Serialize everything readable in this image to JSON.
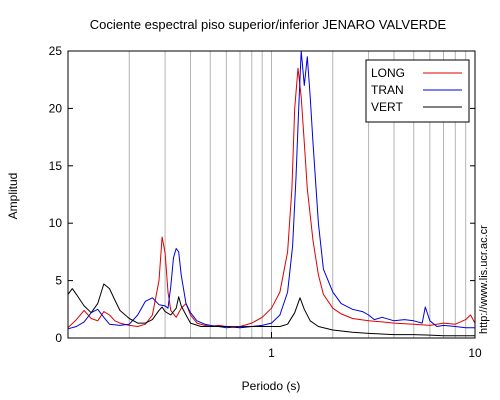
{
  "chart_data": {
    "type": "line",
    "title": "Cociente espectral piso superior/inferior  JENARO VALVERDE",
    "xlabel": "Periodo (s)",
    "ylabel": "Amplitud",
    "xscale": "log",
    "xlim": [
      0.1,
      10
    ],
    "ylim": [
      0,
      25
    ],
    "xticks": [
      {
        "value": 1,
        "label": "1"
      },
      {
        "value": 10,
        "label": "10"
      }
    ],
    "yticks": [
      0,
      5,
      10,
      15,
      20,
      25
    ],
    "grid": "vertical log grid (x only)",
    "legend_position": "top-right",
    "watermark": "http://www.lis.ucr.ac.cr",
    "series": [
      {
        "name": "LONG",
        "color": "#e00000",
        "points": [
          [
            0.1,
            0.9
          ],
          [
            0.11,
            1.6
          ],
          [
            0.12,
            2.4
          ],
          [
            0.13,
            1.7
          ],
          [
            0.14,
            1.5
          ],
          [
            0.15,
            2.3
          ],
          [
            0.16,
            2.0
          ],
          [
            0.17,
            1.5
          ],
          [
            0.18,
            1.3
          ],
          [
            0.2,
            1.1
          ],
          [
            0.22,
            1.0
          ],
          [
            0.24,
            1.2
          ],
          [
            0.26,
            2.0
          ],
          [
            0.28,
            5.0
          ],
          [
            0.29,
            8.8
          ],
          [
            0.3,
            7.4
          ],
          [
            0.31,
            4.0
          ],
          [
            0.32,
            2.4
          ],
          [
            0.34,
            1.8
          ],
          [
            0.36,
            2.6
          ],
          [
            0.38,
            3.0
          ],
          [
            0.4,
            2.0
          ],
          [
            0.43,
            1.3
          ],
          [
            0.47,
            1.1
          ],
          [
            0.5,
            1.0
          ],
          [
            0.55,
            1.1
          ],
          [
            0.6,
            1.0
          ],
          [
            0.7,
            1.0
          ],
          [
            0.8,
            1.3
          ],
          [
            0.9,
            1.8
          ],
          [
            1.0,
            2.6
          ],
          [
            1.1,
            4.0
          ],
          [
            1.2,
            7.5
          ],
          [
            1.26,
            13.0
          ],
          [
            1.3,
            20.0
          ],
          [
            1.35,
            23.5
          ],
          [
            1.4,
            21.0
          ],
          [
            1.45,
            17.0
          ],
          [
            1.5,
            13.0
          ],
          [
            1.6,
            8.5
          ],
          [
            1.7,
            5.5
          ],
          [
            1.8,
            3.8
          ],
          [
            2.0,
            2.6
          ],
          [
            2.2,
            2.1
          ],
          [
            2.5,
            1.7
          ],
          [
            3.0,
            1.5
          ],
          [
            3.5,
            1.4
          ],
          [
            4.0,
            1.3
          ],
          [
            5.0,
            1.2
          ],
          [
            6.0,
            1.1
          ],
          [
            7.0,
            1.3
          ],
          [
            8.0,
            1.2
          ],
          [
            9.0,
            1.6
          ],
          [
            9.5,
            2.0
          ],
          [
            10.0,
            1.3
          ]
        ]
      },
      {
        "name": "TRAN",
        "color": "#0000e0",
        "points": [
          [
            0.1,
            0.8
          ],
          [
            0.11,
            1.0
          ],
          [
            0.12,
            1.4
          ],
          [
            0.13,
            2.2
          ],
          [
            0.14,
            2.5
          ],
          [
            0.15,
            1.8
          ],
          [
            0.16,
            1.2
          ],
          [
            0.18,
            1.1
          ],
          [
            0.2,
            1.2
          ],
          [
            0.22,
            2.0
          ],
          [
            0.24,
            3.2
          ],
          [
            0.26,
            3.5
          ],
          [
            0.28,
            2.9
          ],
          [
            0.3,
            2.8
          ],
          [
            0.31,
            2.6
          ],
          [
            0.32,
            4.5
          ],
          [
            0.33,
            7.0
          ],
          [
            0.34,
            7.8
          ],
          [
            0.35,
            7.5
          ],
          [
            0.36,
            5.5
          ],
          [
            0.38,
            3.0
          ],
          [
            0.4,
            2.2
          ],
          [
            0.43,
            1.5
          ],
          [
            0.47,
            1.2
          ],
          [
            0.5,
            1.1
          ],
          [
            0.55,
            1.0
          ],
          [
            0.6,
            0.9
          ],
          [
            0.7,
            1.0
          ],
          [
            0.8,
            1.0
          ],
          [
            0.9,
            1.1
          ],
          [
            1.0,
            1.3
          ],
          [
            1.1,
            2.0
          ],
          [
            1.2,
            4.0
          ],
          [
            1.27,
            8.0
          ],
          [
            1.32,
            14.0
          ],
          [
            1.36,
            20.0
          ],
          [
            1.4,
            25.0
          ],
          [
            1.45,
            22.0
          ],
          [
            1.5,
            24.5
          ],
          [
            1.55,
            21.0
          ],
          [
            1.6,
            17.0
          ],
          [
            1.7,
            10.0
          ],
          [
            1.8,
            6.0
          ],
          [
            2.0,
            4.0
          ],
          [
            2.2,
            3.0
          ],
          [
            2.5,
            2.5
          ],
          [
            2.8,
            2.3
          ],
          [
            3.0,
            2.0
          ],
          [
            3.2,
            1.6
          ],
          [
            3.5,
            1.8
          ],
          [
            4.0,
            1.5
          ],
          [
            4.5,
            1.6
          ],
          [
            5.0,
            1.5
          ],
          [
            5.5,
            1.3
          ],
          [
            5.7,
            2.7
          ],
          [
            6.0,
            1.5
          ],
          [
            6.5,
            1.0
          ],
          [
            7.0,
            1.1
          ],
          [
            8.0,
            1.0
          ],
          [
            9.0,
            0.9
          ],
          [
            10.0,
            0.9
          ]
        ]
      },
      {
        "name": "VERT",
        "color": "#000000",
        "points": [
          [
            0.1,
            3.8
          ],
          [
            0.105,
            4.3
          ],
          [
            0.11,
            3.8
          ],
          [
            0.12,
            2.8
          ],
          [
            0.13,
            2.2
          ],
          [
            0.14,
            3.0
          ],
          [
            0.15,
            4.7
          ],
          [
            0.16,
            4.3
          ],
          [
            0.17,
            3.3
          ],
          [
            0.18,
            2.4
          ],
          [
            0.2,
            1.7
          ],
          [
            0.22,
            1.3
          ],
          [
            0.24,
            1.3
          ],
          [
            0.26,
            1.6
          ],
          [
            0.28,
            2.4
          ],
          [
            0.29,
            2.7
          ],
          [
            0.3,
            2.3
          ],
          [
            0.32,
            2.0
          ],
          [
            0.34,
            2.6
          ],
          [
            0.35,
            3.6
          ],
          [
            0.36,
            2.8
          ],
          [
            0.38,
            2.0
          ],
          [
            0.4,
            1.3
          ],
          [
            0.45,
            1.0
          ],
          [
            0.5,
            1.0
          ],
          [
            0.6,
            1.0
          ],
          [
            0.7,
            0.9
          ],
          [
            0.8,
            1.0
          ],
          [
            0.9,
            1.0
          ],
          [
            1.0,
            1.0
          ],
          [
            1.1,
            1.0
          ],
          [
            1.2,
            1.2
          ],
          [
            1.3,
            2.2
          ],
          [
            1.38,
            3.5
          ],
          [
            1.45,
            2.5
          ],
          [
            1.55,
            1.5
          ],
          [
            1.7,
            1.0
          ],
          [
            2.0,
            0.7
          ],
          [
            2.5,
            0.5
          ],
          [
            3.0,
            0.4
          ],
          [
            4.0,
            0.3
          ],
          [
            5.0,
            0.3
          ],
          [
            6.0,
            0.25
          ],
          [
            7.0,
            0.2
          ],
          [
            8.0,
            0.2
          ],
          [
            10.0,
            0.2
          ]
        ]
      }
    ]
  }
}
